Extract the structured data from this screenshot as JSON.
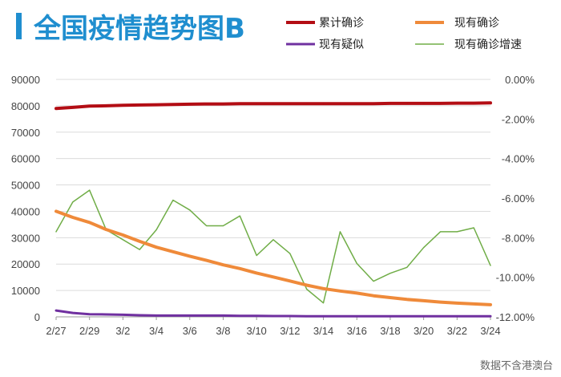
{
  "header": {
    "title": "全国疫情趋势图B",
    "accent_color": "#1f8ecf"
  },
  "source_note": "数据不含港澳台",
  "chart_data": {
    "type": "line",
    "title": "全国疫情趋势图B",
    "x": [
      "2/27",
      "2/28",
      "2/29",
      "3/1",
      "3/2",
      "3/3",
      "3/4",
      "3/5",
      "3/6",
      "3/7",
      "3/8",
      "3/9",
      "3/10",
      "3/11",
      "3/12",
      "3/13",
      "3/14",
      "3/15",
      "3/16",
      "3/17",
      "3/18",
      "3/19",
      "3/20",
      "3/21",
      "3/22",
      "3/23",
      "3/24"
    ],
    "x_tick_labels": [
      "2/27",
      "2/29",
      "3/2",
      "3/4",
      "3/6",
      "3/8",
      "3/10",
      "3/12",
      "3/14",
      "3/16",
      "3/18",
      "3/20",
      "3/22",
      "3/24"
    ],
    "left_axis": {
      "ylim": [
        0,
        90000
      ],
      "ticks": [
        "90000",
        "80000",
        "70000",
        "60000",
        "50000",
        "40000",
        "30000",
        "20000",
        "10000",
        "0"
      ]
    },
    "right_axis": {
      "ylim": [
        -12,
        0
      ],
      "unit": "%",
      "ticks": [
        "0.00%",
        "-2.00%",
        "-4.00%",
        "-6.00%",
        "-8.00%",
        "-10.00%",
        "-12.00%"
      ]
    },
    "grid": true,
    "legend_position": "top",
    "series": [
      {
        "name": "累计确诊",
        "axis": "left",
        "color": "#b30d14",
        "line_width": 4,
        "values": [
          79000,
          79400,
          79900,
          80000,
          80200,
          80300,
          80400,
          80500,
          80600,
          80700,
          80700,
          80800,
          80800,
          80800,
          80800,
          80800,
          80800,
          80800,
          80800,
          80800,
          80900,
          80900,
          80900,
          80900,
          81000,
          81000,
          81100
        ]
      },
      {
        "name": "现有确诊",
        "axis": "left",
        "color": "#ef8a3a",
        "line_width": 4,
        "values": [
          40000,
          37700,
          35800,
          33100,
          31000,
          28600,
          26400,
          24700,
          23000,
          21400,
          19700,
          18300,
          16600,
          15100,
          13600,
          12000,
          10700,
          9800,
          9000,
          8000,
          7300,
          6600,
          6100,
          5600,
          5200,
          4900,
          4600
        ]
      },
      {
        "name": "现有疑似",
        "axis": "left",
        "color": "#7030a0",
        "line_width": 3,
        "values": [
          2400,
          1500,
          1000,
          900,
          800,
          600,
          500,
          500,
          500,
          500,
          500,
          400,
          400,
          300,
          300,
          200,
          200,
          200,
          200,
          200,
          200,
          200,
          200,
          200,
          200,
          200,
          200
        ]
      },
      {
        "name": "现有确诊增速",
        "axis": "right",
        "color": "#70ad47",
        "line_width": 1.5,
        "values": [
          -7.7,
          -6.2,
          -5.6,
          -7.6,
          -8.1,
          -8.6,
          -7.6,
          -6.1,
          -6.6,
          -7.4,
          -7.4,
          -6.9,
          -8.9,
          -8.1,
          -8.8,
          -10.6,
          -11.3,
          -7.7,
          -9.3,
          -10.2,
          -9.8,
          -9.5,
          -8.5,
          -7.7,
          -7.7,
          -7.5,
          -9.4
        ]
      }
    ]
  }
}
